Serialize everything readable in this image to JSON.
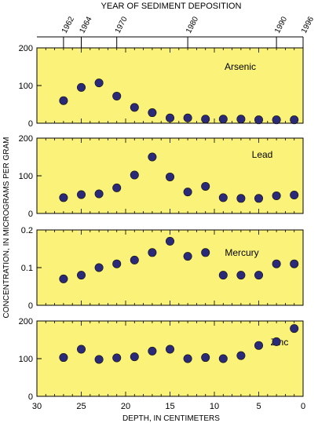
{
  "colors": {
    "panel_bg": "#fbf27a",
    "marker": "#2b2a78",
    "axis": "#000000"
  },
  "chart_data": {
    "type": "scatter",
    "top_axis_title": "YEAR OF SEDIMENT DEPOSITION",
    "top_axis_ticks": [
      {
        "label": "1962",
        "depth": 27
      },
      {
        "label": "1964",
        "depth": 25
      },
      {
        "label": "1970",
        "depth": 21
      },
      {
        "label": "1980",
        "depth": 13
      },
      {
        "label": "1990",
        "depth": 3
      },
      {
        "label": "1996",
        "depth": 0
      }
    ],
    "ylabel": "CONCENTRATION, IN MICROGRAMS PER GRAM",
    "xlabel": "DEPTH, IN CENTIMETERS",
    "xlim": [
      30,
      0
    ],
    "x_ticks": [
      "30",
      "25",
      "20",
      "15",
      "10",
      "5",
      "0"
    ],
    "x_tick_values": [
      30,
      25,
      20,
      15,
      10,
      5,
      0
    ],
    "x": [
      27,
      25,
      23,
      21,
      19,
      17,
      15,
      13,
      11,
      9,
      7,
      5,
      3,
      1
    ],
    "series": [
      {
        "name": "Arsenic",
        "ylim": [
          0,
          200
        ],
        "y_ticks": [
          "0",
          "100",
          "200"
        ],
        "y_tick_values": [
          0,
          100,
          200
        ],
        "values": [
          60,
          95,
          107,
          72,
          42,
          28,
          14,
          14,
          11,
          11,
          11,
          9,
          9,
          9
        ]
      },
      {
        "name": "Lead",
        "ylim": [
          0,
          200
        ],
        "y_ticks": [
          "0",
          "100",
          "200"
        ],
        "y_tick_values": [
          0,
          100,
          200
        ],
        "values": [
          42,
          50,
          52,
          68,
          102,
          150,
          97,
          57,
          72,
          42,
          40,
          40,
          47,
          49
        ]
      },
      {
        "name": "Mercury",
        "ylim": [
          0,
          0.2
        ],
        "y_ticks": [
          "0",
          "0.1",
          "0.2"
        ],
        "y_tick_values": [
          0,
          0.1,
          0.2
        ],
        "values": [
          0.07,
          0.08,
          0.1,
          0.11,
          0.12,
          0.14,
          0.17,
          0.13,
          0.14,
          0.08,
          0.08,
          0.08,
          0.11,
          0.11
        ]
      },
      {
        "name": "Zinc",
        "ylim": [
          0,
          200
        ],
        "y_ticks": [
          "0",
          "100",
          "200"
        ],
        "y_tick_values": [
          0,
          100,
          200
        ],
        "values": [
          103,
          125,
          98,
          102,
          105,
          120,
          125,
          100,
          103,
          100,
          108,
          135,
          145,
          180
        ]
      }
    ]
  }
}
